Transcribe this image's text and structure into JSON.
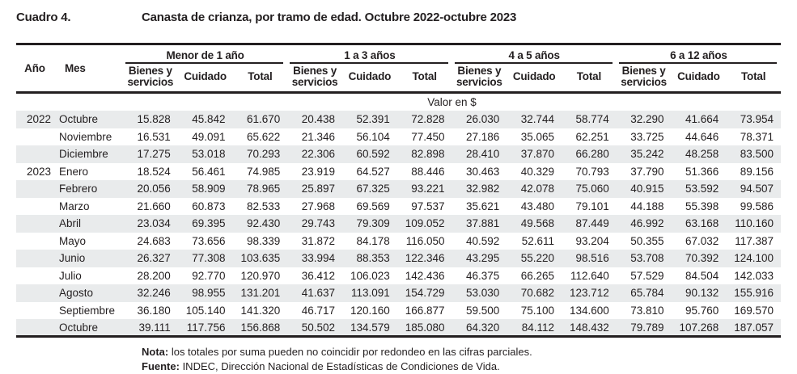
{
  "header": {
    "table_number": "Cuadro 4.",
    "title": "Canasta de crianza, por tramo de edad. Octubre 2022-octubre 2023"
  },
  "table": {
    "row_header_columns": [
      "Año",
      "Mes"
    ],
    "groups": [
      {
        "label": "Menor de 1 año",
        "sub": [
          "Bienes y servicios",
          "Cuidado",
          "Total"
        ]
      },
      {
        "label": "1 a 3 años",
        "sub": [
          "Bienes y servicios",
          "Cuidado",
          "Total"
        ]
      },
      {
        "label": "4 a 5 años",
        "sub": [
          "Bienes y servicios",
          "Cuidado",
          "Total"
        ]
      },
      {
        "label": "6 a 12 años",
        "sub": [
          "Bienes y servicios",
          "Cuidado",
          "Total"
        ]
      }
    ],
    "unit_label": "Valor en $",
    "rows": [
      {
        "year": "2022",
        "month": "Octubre",
        "values": [
          "15.828",
          "45.842",
          "61.670",
          "20.438",
          "52.391",
          "72.828",
          "26.030",
          "32.744",
          "58.774",
          "32.290",
          "41.664",
          "73.954"
        ]
      },
      {
        "year": "",
        "month": "Noviembre",
        "values": [
          "16.531",
          "49.091",
          "65.622",
          "21.346",
          "56.104",
          "77.450",
          "27.186",
          "35.065",
          "62.251",
          "33.725",
          "44.646",
          "78.371"
        ]
      },
      {
        "year": "",
        "month": "Diciembre",
        "values": [
          "17.275",
          "53.018",
          "70.293",
          "22.306",
          "60.592",
          "82.898",
          "28.410",
          "37.870",
          "66.280",
          "35.242",
          "48.258",
          "83.500"
        ]
      },
      {
        "year": "2023",
        "month": "Enero",
        "values": [
          "18.524",
          "56.461",
          "74.985",
          "23.919",
          "64.527",
          "88.446",
          "30.463",
          "40.329",
          "70.793",
          "37.790",
          "51.366",
          "89.156"
        ]
      },
      {
        "year": "",
        "month": "Febrero",
        "values": [
          "20.056",
          "58.909",
          "78.965",
          "25.897",
          "67.325",
          "93.221",
          "32.982",
          "42.078",
          "75.060",
          "40.915",
          "53.592",
          "94.507"
        ]
      },
      {
        "year": "",
        "month": "Marzo",
        "values": [
          "21.660",
          "60.873",
          "82.533",
          "27.968",
          "69.569",
          "97.537",
          "35.621",
          "43.480",
          "79.101",
          "44.188",
          "55.398",
          "99.586"
        ]
      },
      {
        "year": "",
        "month": "Abril",
        "values": [
          "23.034",
          "69.395",
          "92.430",
          "29.743",
          "79.309",
          "109.052",
          "37.881",
          "49.568",
          "87.449",
          "46.992",
          "63.168",
          "110.160"
        ]
      },
      {
        "year": "",
        "month": "Mayo",
        "values": [
          "24.683",
          "73.656",
          "98.339",
          "31.872",
          "84.178",
          "116.050",
          "40.592",
          "52.611",
          "93.204",
          "50.355",
          "67.032",
          "117.387"
        ]
      },
      {
        "year": "",
        "month": "Junio",
        "values": [
          "26.327",
          "77.308",
          "103.635",
          "33.994",
          "88.353",
          "122.346",
          "43.295",
          "55.220",
          "98.516",
          "53.708",
          "70.392",
          "124.100"
        ]
      },
      {
        "year": "",
        "month": "Julio",
        "values": [
          "28.200",
          "92.770",
          "120.970",
          "36.412",
          "106.023",
          "142.436",
          "46.375",
          "66.265",
          "112.640",
          "57.529",
          "84.504",
          "142.033"
        ]
      },
      {
        "year": "",
        "month": "Agosto",
        "values": [
          "32.246",
          "98.955",
          "131.201",
          "41.637",
          "113.091",
          "154.729",
          "53.030",
          "70.682",
          "123.712",
          "65.784",
          "90.132",
          "155.916"
        ]
      },
      {
        "year": "",
        "month": "Septiembre",
        "values": [
          "36.180",
          "105.140",
          "141.320",
          "46.717",
          "120.160",
          "166.877",
          "59.500",
          "75.100",
          "134.600",
          "73.810",
          "95.760",
          "169.570"
        ]
      },
      {
        "year": "",
        "month": "Octubre",
        "values": [
          "39.111",
          "117.756",
          "156.868",
          "50.502",
          "134.579",
          "185.080",
          "64.320",
          "84.112",
          "148.432",
          "79.789",
          "107.268",
          "187.057"
        ]
      }
    ]
  },
  "notes": {
    "nota_label": "Nota:",
    "nota_text": " los totales por suma pueden no coincidir por redondeo en las cifras parciales.",
    "fuente_label": "Fuente:",
    "fuente_text": " INDEC, Dirección Nacional de Estadísticas de Condiciones de Vida."
  },
  "colors": {
    "stripe": "#e9ebec",
    "border": "#231f20",
    "text": "#231f20"
  }
}
